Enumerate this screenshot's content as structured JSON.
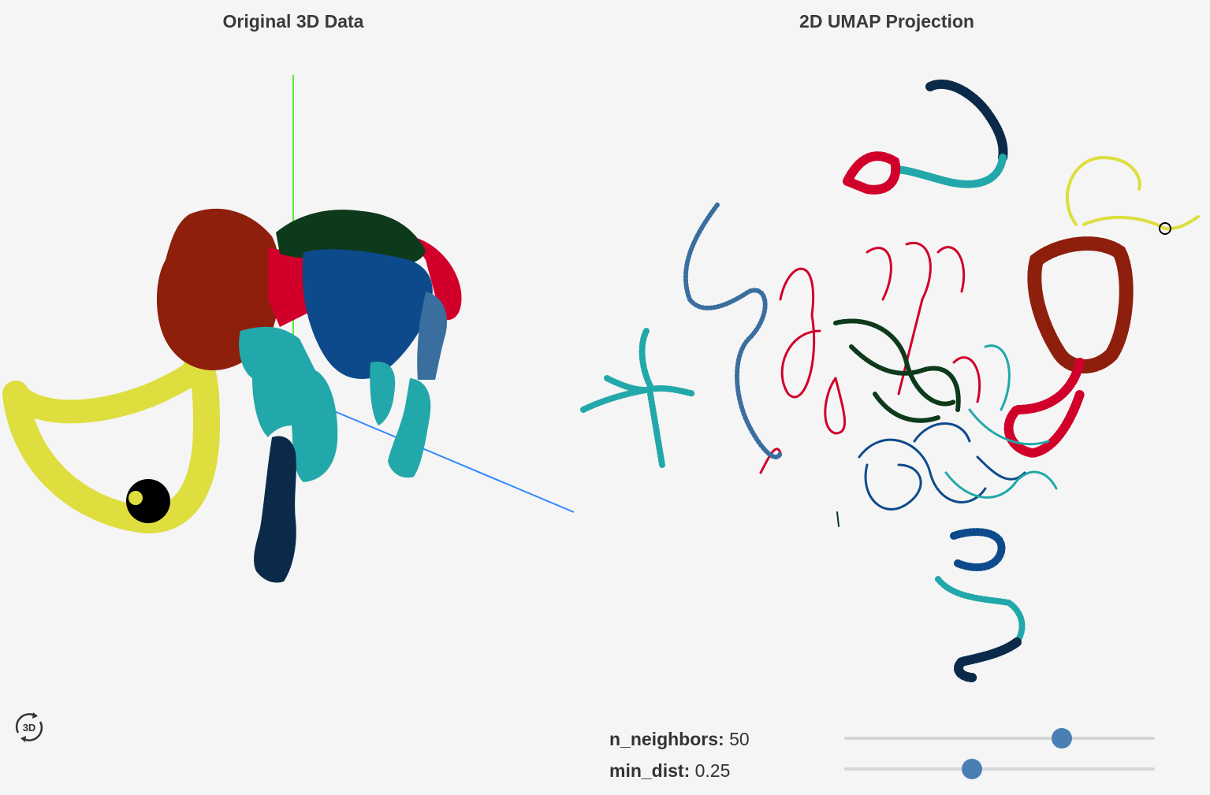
{
  "left_panel": {
    "title": "Original 3D Data",
    "mode_icon": "rotate-3d-icon",
    "mode_text": "3D"
  },
  "right_panel": {
    "title": "2D UMAP Projection"
  },
  "controls": {
    "n_neighbors": {
      "label": "n_neighbors:",
      "value": "50",
      "min": 5,
      "max": 70,
      "fraction": 0.7
    },
    "min_dist": {
      "label": "min_dist:",
      "value": "0.25",
      "fraction": 0.41
    }
  },
  "colors": {
    "background": "#f5f5f5",
    "yellow": "#dede3e",
    "dark_red": "#8e1f0d",
    "red": "#d1002a",
    "dark_green": "#0c3a1a",
    "blue": "#0d4a8c",
    "steel_blue": "#3a6e9e",
    "teal": "#22a8aa",
    "navy": "#0b2a4a",
    "axis_green": "#55ee33",
    "axis_blue": "#3388ff",
    "slider_knob": "#4a7fb4",
    "slider_track": "#d6d6d6"
  }
}
